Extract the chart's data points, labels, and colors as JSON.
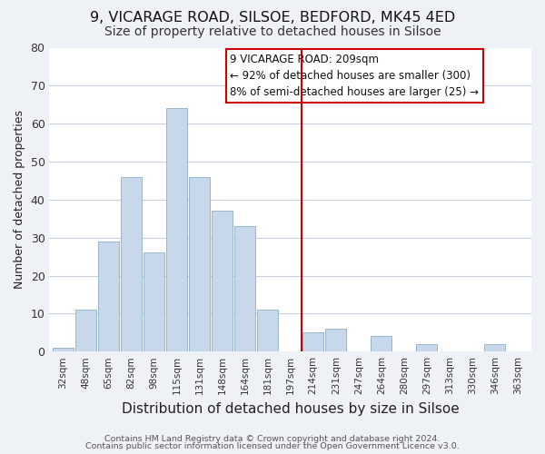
{
  "title": "9, VICARAGE ROAD, SILSOE, BEDFORD, MK45 4ED",
  "subtitle": "Size of property relative to detached houses in Silsoe",
  "xlabel": "Distribution of detached houses by size in Silsoe",
  "ylabel": "Number of detached properties",
  "bar_labels": [
    "32sqm",
    "48sqm",
    "65sqm",
    "82sqm",
    "98sqm",
    "115sqm",
    "131sqm",
    "148sqm",
    "164sqm",
    "181sqm",
    "197sqm",
    "214sqm",
    "231sqm",
    "247sqm",
    "264sqm",
    "280sqm",
    "297sqm",
    "313sqm",
    "330sqm",
    "346sqm",
    "363sqm"
  ],
  "bar_values": [
    1,
    11,
    29,
    46,
    26,
    64,
    46,
    37,
    33,
    11,
    0,
    5,
    6,
    0,
    4,
    0,
    2,
    0,
    0,
    2,
    0
  ],
  "bar_color": "#c8d8eb",
  "bar_edge_color": "#9ab5cc",
  "vline_x_index": 11,
  "vline_color": "#cc0000",
  "ylim": [
    0,
    80
  ],
  "yticks": [
    0,
    10,
    20,
    30,
    40,
    50,
    60,
    70,
    80
  ],
  "annotation_title": "9 VICARAGE ROAD: 209sqm",
  "annotation_line1": "← 92% of detached houses are smaller (300)",
  "annotation_line2": "8% of semi-detached houses are larger (25) →",
  "footer1": "Contains HM Land Registry data © Crown copyright and database right 2024.",
  "footer2": "Contains public sector information licensed under the Open Government Licence v3.0.",
  "bg_color": "#eef2f7",
  "plot_bg_color": "#ffffff",
  "grid_color": "#c8d0dc",
  "title_fontsize": 11.5,
  "subtitle_fontsize": 10,
  "xlabel_fontsize": 11,
  "ylabel_fontsize": 9
}
